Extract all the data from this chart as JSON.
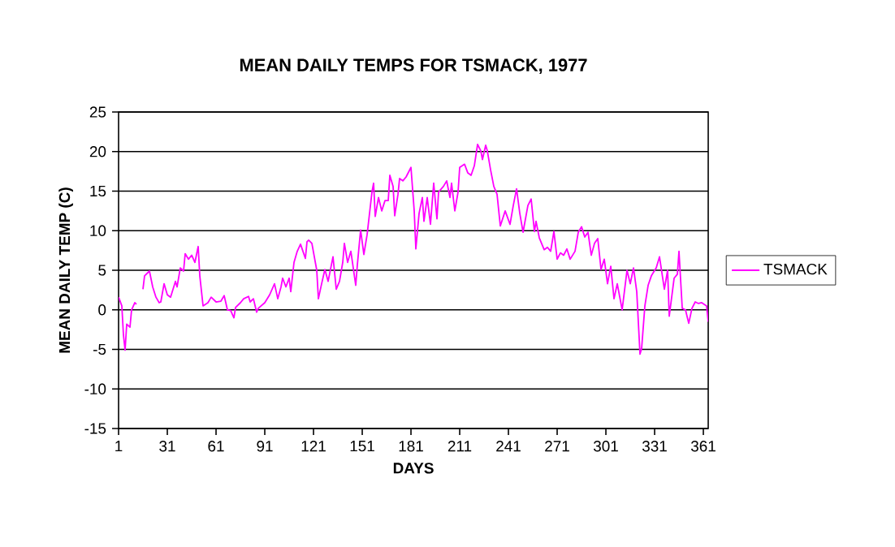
{
  "chart_data": {
    "type": "line",
    "title": "MEAN DAILY TEMPS FOR TSMACK, 1977",
    "xlabel": "DAYS",
    "ylabel": "MEAN DAILY TEMP (C)",
    "xlim": [
      1,
      364
    ],
    "xticks": [
      1,
      31,
      61,
      91,
      121,
      151,
      181,
      211,
      241,
      271,
      301,
      331,
      361
    ],
    "ylim": [
      -15,
      25
    ],
    "yticks": [
      -15,
      -10,
      -5,
      0,
      5,
      10,
      15,
      20,
      25
    ],
    "grid": "y",
    "legend": "right",
    "marker": "none",
    "line_style": "solid",
    "series": [
      {
        "name": "TSMACK",
        "color": "#ff00ff",
        "x": [
          1,
          3,
          4,
          5,
          6,
          8,
          9,
          11,
          12,
          13,
          16,
          17,
          20,
          22,
          24,
          26,
          27,
          29,
          31,
          33,
          36,
          37,
          39,
          41,
          42,
          44,
          46,
          48,
          50,
          51,
          53,
          56,
          58,
          61,
          64,
          66,
          68,
          70,
          72,
          73,
          76,
          78,
          81,
          82,
          84,
          86,
          87,
          91,
          94,
          97,
          99,
          101,
          102,
          104,
          106,
          107,
          109,
          111,
          113,
          116,
          117,
          118,
          120,
          123,
          124,
          126,
          128,
          130,
          133,
          135,
          137,
          139,
          140,
          142,
          144,
          147,
          148,
          150,
          152,
          154,
          157,
          158,
          159,
          161,
          163,
          165,
          167,
          168,
          170,
          171,
          173,
          174,
          176,
          178,
          181,
          183,
          184,
          186,
          188,
          189,
          191,
          193,
          195,
          197,
          198,
          201,
          203,
          205,
          206,
          208,
          210,
          211,
          214,
          216,
          218,
          220,
          222,
          224,
          225,
          227,
          228,
          230,
          232,
          234,
          236,
          239,
          242,
          244,
          246,
          248,
          250,
          253,
          255,
          257,
          258,
          260,
          263,
          265,
          267,
          269,
          271,
          273,
          275,
          277,
          279,
          282,
          284,
          286,
          288,
          290,
          292,
          294,
          296,
          298,
          300,
          302,
          304,
          306,
          308,
          311,
          314,
          316,
          318,
          320,
          322,
          323,
          325,
          327,
          329,
          332,
          334,
          337,
          339,
          340,
          343,
          345,
          346,
          348,
          350,
          352,
          354,
          356,
          358,
          360,
          363,
          364
        ],
        "values": [
          1.6,
          0.5,
          -3.2,
          -5.1,
          -1.8,
          -2.2,
          0,
          0.9,
          0.7,
          null,
          2.6,
          4.3,
          4.9,
          2.9,
          1.6,
          0.9,
          1,
          3.3,
          1.9,
          1.6,
          3.6,
          2.9,
          5.3,
          4.9,
          7.1,
          6.4,
          6.9,
          6,
          8,
          4.3,
          0.5,
          0.9,
          1.6,
          1,
          1.1,
          1.8,
          0,
          -0.1,
          -1,
          0.3,
          0.9,
          1.4,
          1.7,
          1,
          1.4,
          -0.3,
          0.2,
          0.9,
          1.9,
          3.3,
          1.4,
          2.9,
          4,
          2.9,
          4,
          2.3,
          6,
          7.4,
          8.3,
          6.5,
          8.6,
          8.8,
          8.4,
          5,
          1.4,
          3.3,
          5.1,
          3.6,
          6.7,
          2.6,
          3.6,
          6,
          8.4,
          6,
          7.4,
          3.1,
          5.7,
          10.1,
          7,
          9.5,
          14.9,
          16,
          11.8,
          14.2,
          12.5,
          13.8,
          13.8,
          17,
          15.6,
          11.9,
          14.6,
          16.6,
          16.3,
          16.8,
          18,
          12.5,
          7.7,
          12.2,
          14.2,
          11.2,
          14.2,
          10.8,
          16,
          11.5,
          14.9,
          15.6,
          16.3,
          14.2,
          16,
          12.5,
          14.9,
          18,
          18.4,
          17.3,
          17,
          18.2,
          20.9,
          20.1,
          19,
          20.8,
          20.1,
          17.7,
          15.6,
          14.6,
          10.6,
          12.5,
          10.8,
          13.2,
          15.3,
          12.2,
          9.8,
          13.2,
          14,
          9.9,
          11.2,
          9.1,
          7.6,
          7.9,
          7.4,
          9.9,
          6.4,
          7.2,
          6.9,
          7.7,
          6.4,
          7.4,
          9.8,
          10.5,
          9.2,
          9.8,
          6.9,
          8.4,
          9,
          5.1,
          6.4,
          3.3,
          5.5,
          1.4,
          3.3,
          0,
          5,
          3.3,
          5.3,
          2.3,
          -5.6,
          -4.9,
          0.5,
          3.1,
          4.3,
          5.3,
          6.7,
          2.6,
          5,
          -0.8,
          4,
          4.5,
          7.4,
          0.2,
          0,
          -1.7,
          0.2,
          1,
          0.8,
          0.9,
          0.5,
          -1.5
        ]
      }
    ]
  }
}
